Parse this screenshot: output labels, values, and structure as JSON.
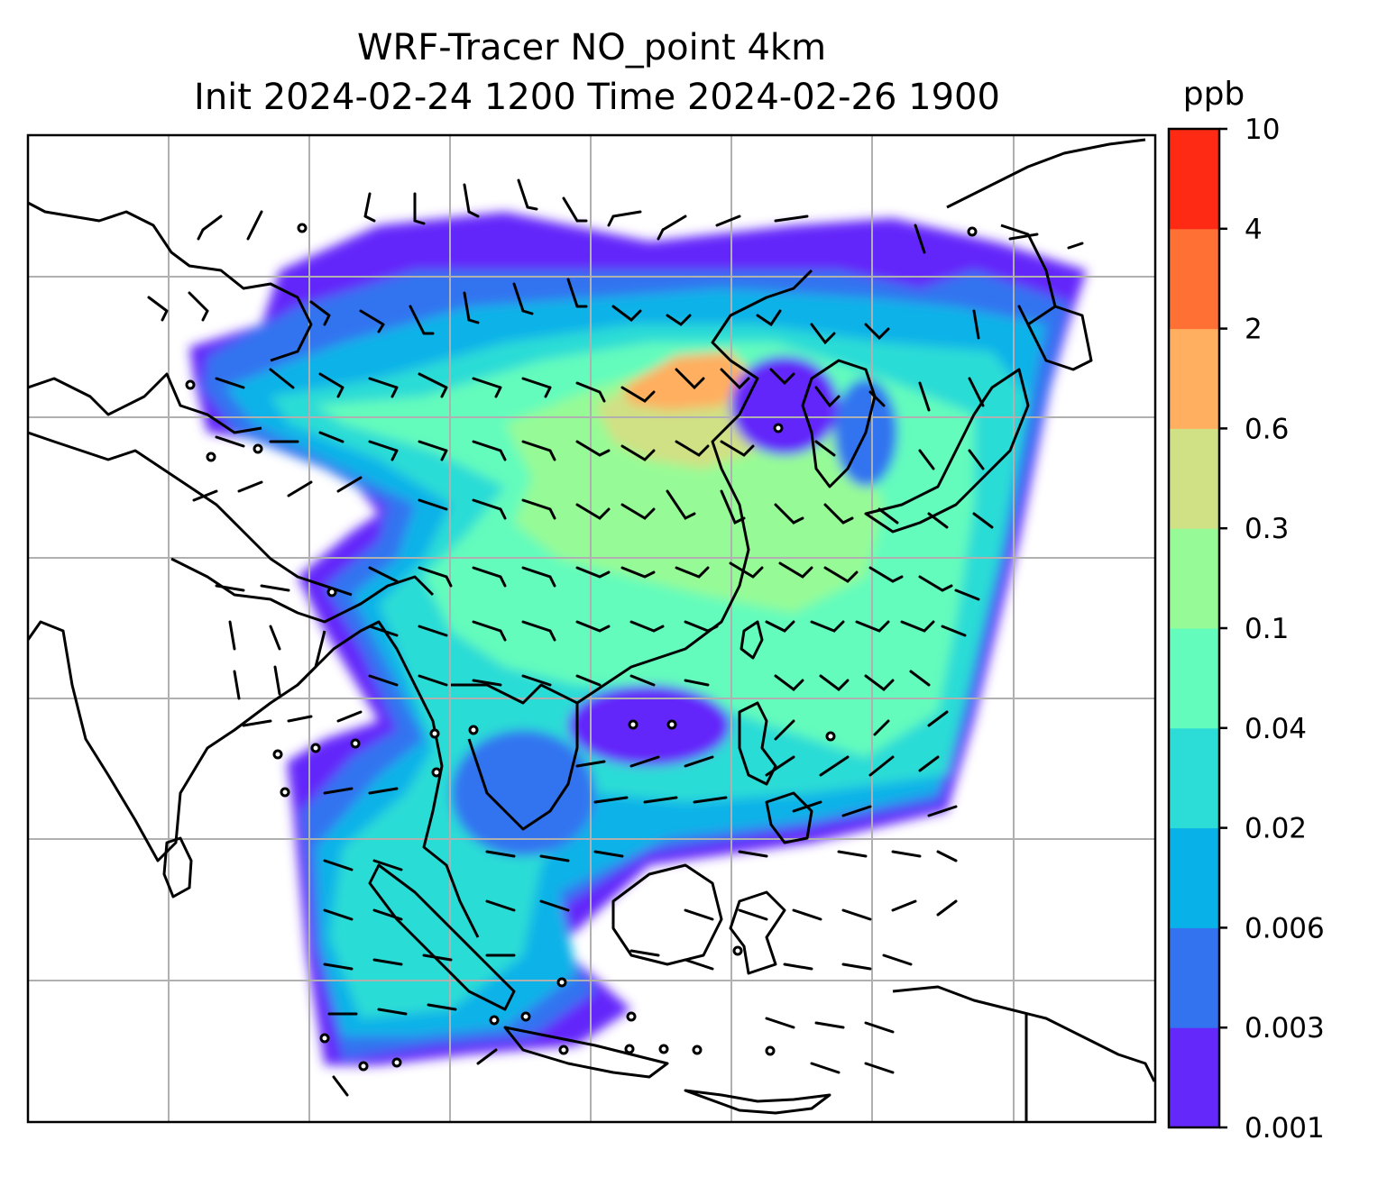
{
  "figure": {
    "title_line1": "WRF-Tracer NO_point 4km",
    "title_line2": "Init 2024-02-24 1200 Time 2024-02-26 1900"
  },
  "colorbar": {
    "unit": "ppb",
    "ticks": [
      "0.001",
      "0.003",
      "0.006",
      "0.02",
      "0.04",
      "0.1",
      "0.3",
      "0.6",
      "2",
      "4",
      "10"
    ],
    "colors": [
      "#6428fa",
      "#3373f0",
      "#08b2e8",
      "#2cdcd6",
      "#64fcbc",
      "#96fb96",
      "#d0e084",
      "#ffaf5f",
      "#ff7035",
      "#ff2a14"
    ]
  },
  "chart_data": {
    "type": "heatmap",
    "field": "NO_point tracer concentration",
    "unit": "ppb",
    "levels": [
      0.001,
      0.003,
      0.006,
      0.02,
      0.04,
      0.1,
      0.3,
      0.6,
      2,
      4,
      10
    ],
    "overlays": [
      "wind barbs",
      "coastlines",
      "lat/lon gridlines"
    ],
    "grid": true
  }
}
